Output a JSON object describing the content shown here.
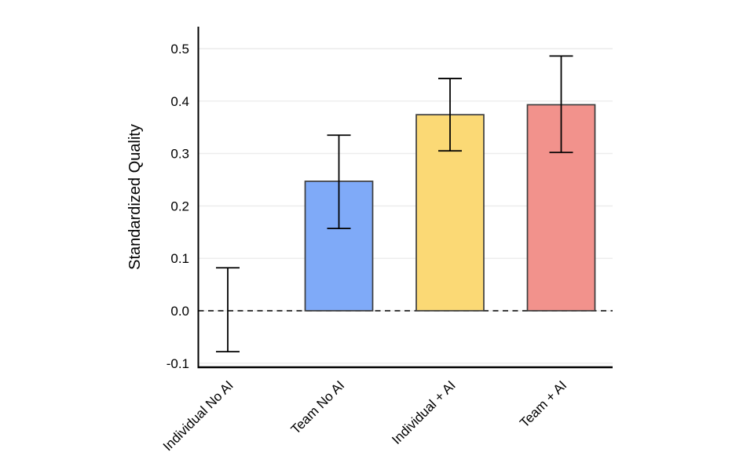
{
  "chart_data": {
    "type": "bar",
    "title": "",
    "ylabel": "Standardized Quality",
    "xlabel": "",
    "categories": [
      "Individual No AI",
      "Team No AI",
      "Individual + AI",
      "Team + AI"
    ],
    "values": [
      0,
      0.247,
      0.374,
      0.393
    ],
    "error_bars": {
      "low": [
        -0.078,
        0.157,
        0.305,
        0.302
      ],
      "high": [
        0.082,
        0.335,
        0.443,
        0.486
      ]
    },
    "bar_colors": [
      null,
      "#7FAAF8",
      "#FBD975",
      "#F2928C"
    ],
    "bar_edge_color": "#3D3D3D",
    "error_bar_color": "#000000",
    "y_ticks": [
      -0.1,
      0,
      0.1,
      0.2,
      0.3,
      0.4,
      0.5
    ],
    "y_tick_labels": [
      "-0.1",
      "0.0",
      "0.1",
      "0.2",
      "0.3",
      "0.4",
      "0.5"
    ],
    "ylim": [
      -0.108,
      0.542
    ],
    "grid": "horizontal",
    "gridline_color": "#ECECEC",
    "zero_line_style": "dashed",
    "axis_color": "#000000",
    "legend": "none",
    "background": "#FFFFFF"
  }
}
